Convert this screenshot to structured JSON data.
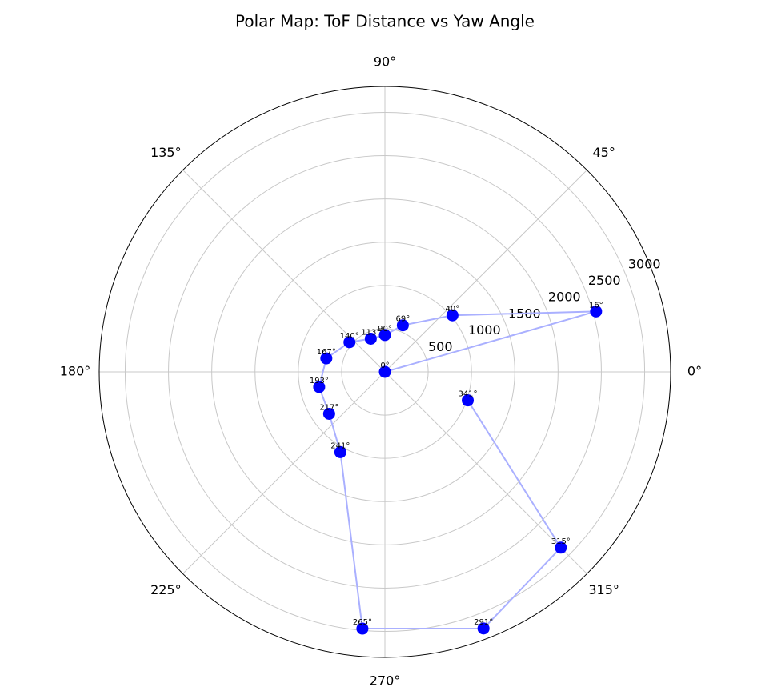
{
  "chart_data": {
    "type": "polar",
    "title": "Polar Map: ToF Distance vs Yaw Angle",
    "theta": [
      0,
      16,
      40,
      69,
      90,
      113,
      140,
      167,
      193,
      217,
      241,
      265,
      291,
      315,
      341
    ],
    "theta_labels": [
      "0°",
      "16°",
      "40°",
      "69°",
      "90°",
      "113°",
      "140°",
      "167°",
      "193°",
      "217°",
      "241°",
      "265°",
      "291°",
      "315°",
      "341°"
    ],
    "values": [
      0,
      2537,
      1018,
      577,
      426,
      417,
      534,
      694,
      779,
      806,
      1061,
      2979,
      3177,
      2873,
      1012
    ],
    "color": "#0000ff",
    "line_color": "#aab0ff",
    "rlim": [
      0,
      3300
    ],
    "rticks": [
      500,
      1000,
      1500,
      2000,
      2500,
      3000
    ],
    "thetaticks": [
      {
        "value": 0,
        "label": "0°"
      },
      {
        "value": 45,
        "label": "45°"
      },
      {
        "value": 90,
        "label": "90°"
      },
      {
        "value": 135,
        "label": "135°"
      },
      {
        "value": 180,
        "label": "180°"
      },
      {
        "value": 225,
        "label": "225°"
      },
      {
        "value": 270,
        "label": "270°"
      },
      {
        "value": 315,
        "label": "315°"
      }
    ],
    "grid": true
  }
}
